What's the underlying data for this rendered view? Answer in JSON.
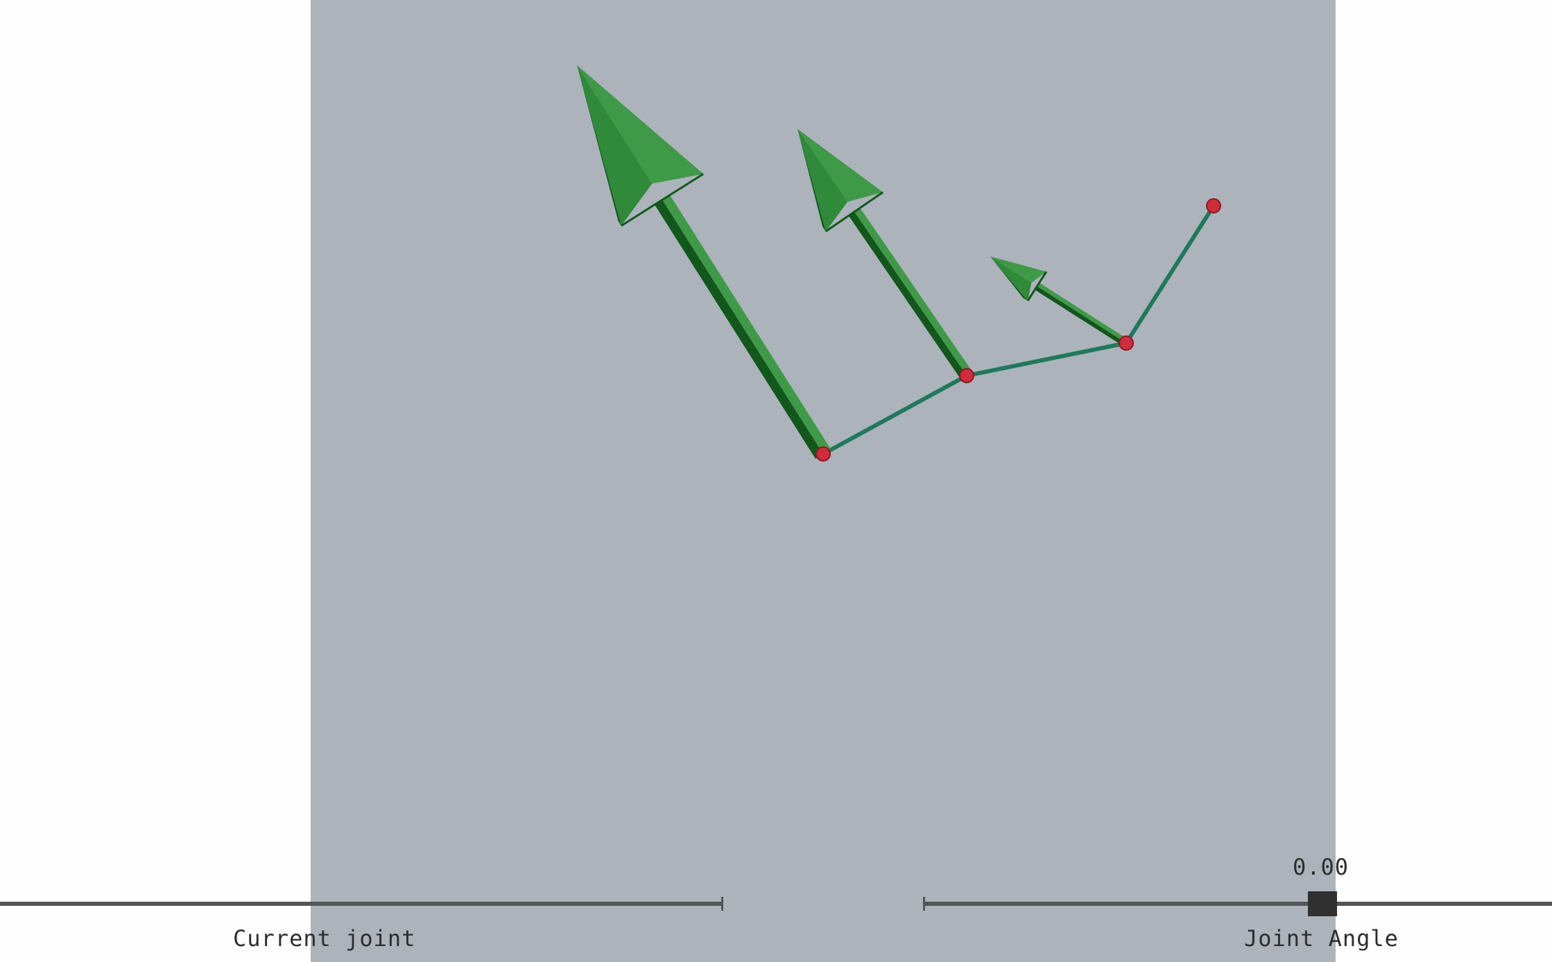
{
  "colors": {
    "page_background": "#fefefe",
    "viewport_background": "#acb3bb",
    "link_line": "#1e7a5c",
    "arrow_light": "#3f9a47",
    "arrow_mid": "#2f8a3a",
    "arrow_dark": "#12571c",
    "joint": "#d02c3c",
    "slider_track": "#555555",
    "slider_handle": "#303030",
    "label_text": "#2d2d2d"
  },
  "icons": {
    "joint_marker": "circle",
    "joint_axis_arrow": "arrow"
  },
  "sliders": {
    "current_joint": {
      "label": "Current joint"
    },
    "joint_angle": {
      "label": "Joint Angle",
      "value": "0.00"
    }
  }
}
